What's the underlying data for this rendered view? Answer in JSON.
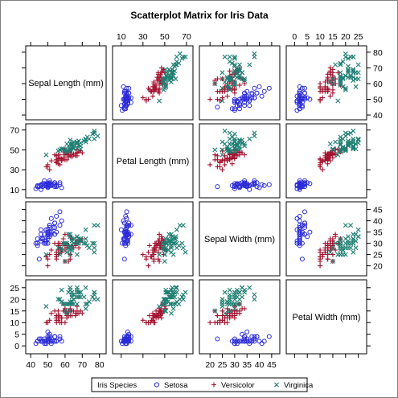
{
  "chart_data": {
    "type": "scatter",
    "title": "Scatterplot Matrix for Iris Data",
    "variables": [
      "Sepal Length (mm)",
      "Petal Length (mm)",
      "Sepal Width (mm)",
      "Petal Width (mm)"
    ],
    "ranges": [
      [
        39,
        82
      ],
      [
        5,
        73
      ],
      [
        17,
        47
      ],
      [
        -2,
        27
      ]
    ],
    "ticks": [
      [
        40,
        50,
        60,
        70,
        80
      ],
      [
        10,
        30,
        50,
        70
      ],
      [
        20,
        25,
        30,
        35,
        40,
        45
      ],
      [
        0,
        5,
        10,
        15,
        20,
        25
      ]
    ],
    "legend": {
      "title": "Iris Species",
      "position": "bottom",
      "entries": [
        "Setosa",
        "Versicolor",
        "Virginica"
      ]
    },
    "colors": {
      "Setosa": "#2b2bd8",
      "Versicolor": "#a3112f",
      "Virginica": "#1f7e72"
    },
    "markers": {
      "Setosa": "circle",
      "Versicolor": "plus",
      "Virginica": "x"
    },
    "grid": false,
    "series": [
      {
        "name": "Setosa",
        "points": [
          [
            51,
            14,
            35,
            2
          ],
          [
            49,
            14,
            30,
            2
          ],
          [
            47,
            13,
            32,
            2
          ],
          [
            46,
            15,
            31,
            2
          ],
          [
            50,
            14,
            36,
            2
          ],
          [
            54,
            17,
            39,
            4
          ],
          [
            46,
            14,
            34,
            3
          ],
          [
            50,
            15,
            34,
            2
          ],
          [
            44,
            14,
            29,
            2
          ],
          [
            49,
            15,
            31,
            1
          ],
          [
            54,
            15,
            37,
            2
          ],
          [
            48,
            16,
            34,
            2
          ],
          [
            48,
            14,
            30,
            1
          ],
          [
            43,
            11,
            30,
            1
          ],
          [
            58,
            12,
            40,
            2
          ],
          [
            57,
            15,
            44,
            4
          ],
          [
            54,
            13,
            39,
            4
          ],
          [
            51,
            14,
            35,
            3
          ],
          [
            57,
            17,
            38,
            3
          ],
          [
            51,
            15,
            38,
            3
          ],
          [
            54,
            17,
            34,
            2
          ],
          [
            51,
            15,
            37,
            4
          ],
          [
            46,
            10,
            36,
            2
          ],
          [
            51,
            17,
            33,
            5
          ],
          [
            48,
            19,
            34,
            2
          ],
          [
            50,
            16,
            30,
            2
          ],
          [
            50,
            16,
            34,
            4
          ],
          [
            52,
            15,
            35,
            2
          ],
          [
            52,
            14,
            34,
            2
          ],
          [
            47,
            16,
            32,
            2
          ],
          [
            48,
            16,
            31,
            2
          ],
          [
            54,
            15,
            34,
            4
          ],
          [
            52,
            15,
            41,
            1
          ],
          [
            55,
            14,
            42,
            2
          ],
          [
            49,
            15,
            31,
            2
          ],
          [
            50,
            12,
            32,
            2
          ],
          [
            55,
            13,
            35,
            2
          ],
          [
            49,
            14,
            36,
            1
          ],
          [
            44,
            13,
            30,
            2
          ],
          [
            51,
            15,
            34,
            2
          ],
          [
            50,
            13,
            35,
            3
          ],
          [
            45,
            13,
            23,
            3
          ],
          [
            44,
            13,
            32,
            2
          ],
          [
            50,
            16,
            35,
            6
          ],
          [
            51,
            19,
            38,
            4
          ],
          [
            48,
            14,
            30,
            3
          ],
          [
            51,
            16,
            38,
            2
          ],
          [
            46,
            14,
            32,
            2
          ],
          [
            53,
            15,
            37,
            2
          ],
          [
            50,
            14,
            33,
            2
          ]
        ]
      },
      {
        "name": "Versicolor",
        "points": [
          [
            70,
            47,
            32,
            14
          ],
          [
            64,
            45,
            32,
            15
          ],
          [
            69,
            49,
            31,
            15
          ],
          [
            55,
            40,
            23,
            13
          ],
          [
            65,
            46,
            28,
            15
          ],
          [
            57,
            45,
            28,
            13
          ],
          [
            63,
            47,
            33,
            16
          ],
          [
            49,
            33,
            24,
            10
          ],
          [
            66,
            46,
            29,
            13
          ],
          [
            52,
            39,
            27,
            14
          ],
          [
            50,
            35,
            20,
            10
          ],
          [
            59,
            42,
            30,
            15
          ],
          [
            60,
            40,
            22,
            10
          ],
          [
            61,
            47,
            29,
            14
          ],
          [
            56,
            36,
            29,
            13
          ],
          [
            67,
            44,
            31,
            14
          ],
          [
            56,
            45,
            30,
            15
          ],
          [
            58,
            41,
            27,
            10
          ],
          [
            62,
            45,
            22,
            15
          ],
          [
            56,
            39,
            25,
            11
          ],
          [
            59,
            48,
            32,
            18
          ],
          [
            61,
            40,
            28,
            13
          ],
          [
            63,
            49,
            25,
            15
          ],
          [
            61,
            47,
            28,
            12
          ],
          [
            64,
            43,
            29,
            13
          ],
          [
            66,
            44,
            30,
            14
          ],
          [
            68,
            48,
            28,
            14
          ],
          [
            67,
            50,
            30,
            17
          ],
          [
            60,
            45,
            29,
            15
          ],
          [
            57,
            35,
            26,
            10
          ],
          [
            55,
            38,
            24,
            11
          ],
          [
            55,
            37,
            24,
            10
          ],
          [
            58,
            39,
            27,
            12
          ],
          [
            60,
            51,
            27,
            16
          ],
          [
            54,
            45,
            30,
            15
          ],
          [
            60,
            45,
            34,
            16
          ],
          [
            67,
            47,
            31,
            15
          ],
          [
            63,
            44,
            23,
            13
          ],
          [
            56,
            41,
            30,
            13
          ],
          [
            55,
            40,
            25,
            13
          ],
          [
            55,
            44,
            26,
            12
          ],
          [
            61,
            46,
            30,
            14
          ],
          [
            58,
            40,
            26,
            12
          ],
          [
            50,
            33,
            23,
            10
          ],
          [
            56,
            42,
            27,
            13
          ],
          [
            57,
            42,
            30,
            12
          ],
          [
            57,
            42,
            29,
            13
          ],
          [
            62,
            43,
            29,
            13
          ],
          [
            51,
            30,
            25,
            11
          ],
          [
            57,
            41,
            28,
            13
          ]
        ]
      },
      {
        "name": "Virginica",
        "points": [
          [
            63,
            60,
            33,
            25
          ],
          [
            58,
            51,
            27,
            19
          ],
          [
            71,
            59,
            30,
            21
          ],
          [
            63,
            56,
            29,
            18
          ],
          [
            65,
            58,
            30,
            22
          ],
          [
            76,
            66,
            30,
            21
          ],
          [
            49,
            45,
            25,
            17
          ],
          [
            73,
            63,
            29,
            18
          ],
          [
            67,
            58,
            25,
            18
          ],
          [
            72,
            61,
            36,
            25
          ],
          [
            65,
            51,
            32,
            20
          ],
          [
            64,
            53,
            27,
            19
          ],
          [
            68,
            55,
            30,
            21
          ],
          [
            57,
            50,
            25,
            20
          ],
          [
            58,
            51,
            28,
            24
          ],
          [
            64,
            53,
            32,
            23
          ],
          [
            65,
            55,
            30,
            18
          ],
          [
            77,
            67,
            38,
            22
          ],
          [
            77,
            69,
            26,
            23
          ],
          [
            60,
            50,
            22,
            15
          ],
          [
            69,
            57,
            32,
            23
          ],
          [
            56,
            49,
            28,
            20
          ],
          [
            77,
            67,
            28,
            20
          ],
          [
            63,
            49,
            27,
            18
          ],
          [
            67,
            57,
            33,
            21
          ],
          [
            72,
            60,
            32,
            18
          ],
          [
            62,
            48,
            28,
            18
          ],
          [
            61,
            49,
            30,
            18
          ],
          [
            64,
            56,
            28,
            21
          ],
          [
            72,
            58,
            30,
            16
          ],
          [
            74,
            61,
            28,
            19
          ],
          [
            79,
            64,
            38,
            20
          ],
          [
            64,
            56,
            28,
            22
          ],
          [
            63,
            51,
            28,
            15
          ],
          [
            61,
            56,
            26,
            14
          ],
          [
            77,
            61,
            30,
            23
          ],
          [
            63,
            56,
            34,
            24
          ],
          [
            64,
            55,
            31,
            18
          ],
          [
            60,
            48,
            30,
            18
          ],
          [
            69,
            54,
            31,
            21
          ],
          [
            67,
            56,
            31,
            24
          ],
          [
            69,
            51,
            31,
            23
          ],
          [
            58,
            51,
            27,
            19
          ],
          [
            68,
            59,
            32,
            23
          ],
          [
            67,
            57,
            33,
            25
          ],
          [
            67,
            52,
            30,
            23
          ],
          [
            63,
            50,
            25,
            19
          ],
          [
            65,
            52,
            30,
            20
          ],
          [
            62,
            54,
            34,
            23
          ],
          [
            59,
            51,
            30,
            18
          ]
        ]
      }
    ]
  }
}
